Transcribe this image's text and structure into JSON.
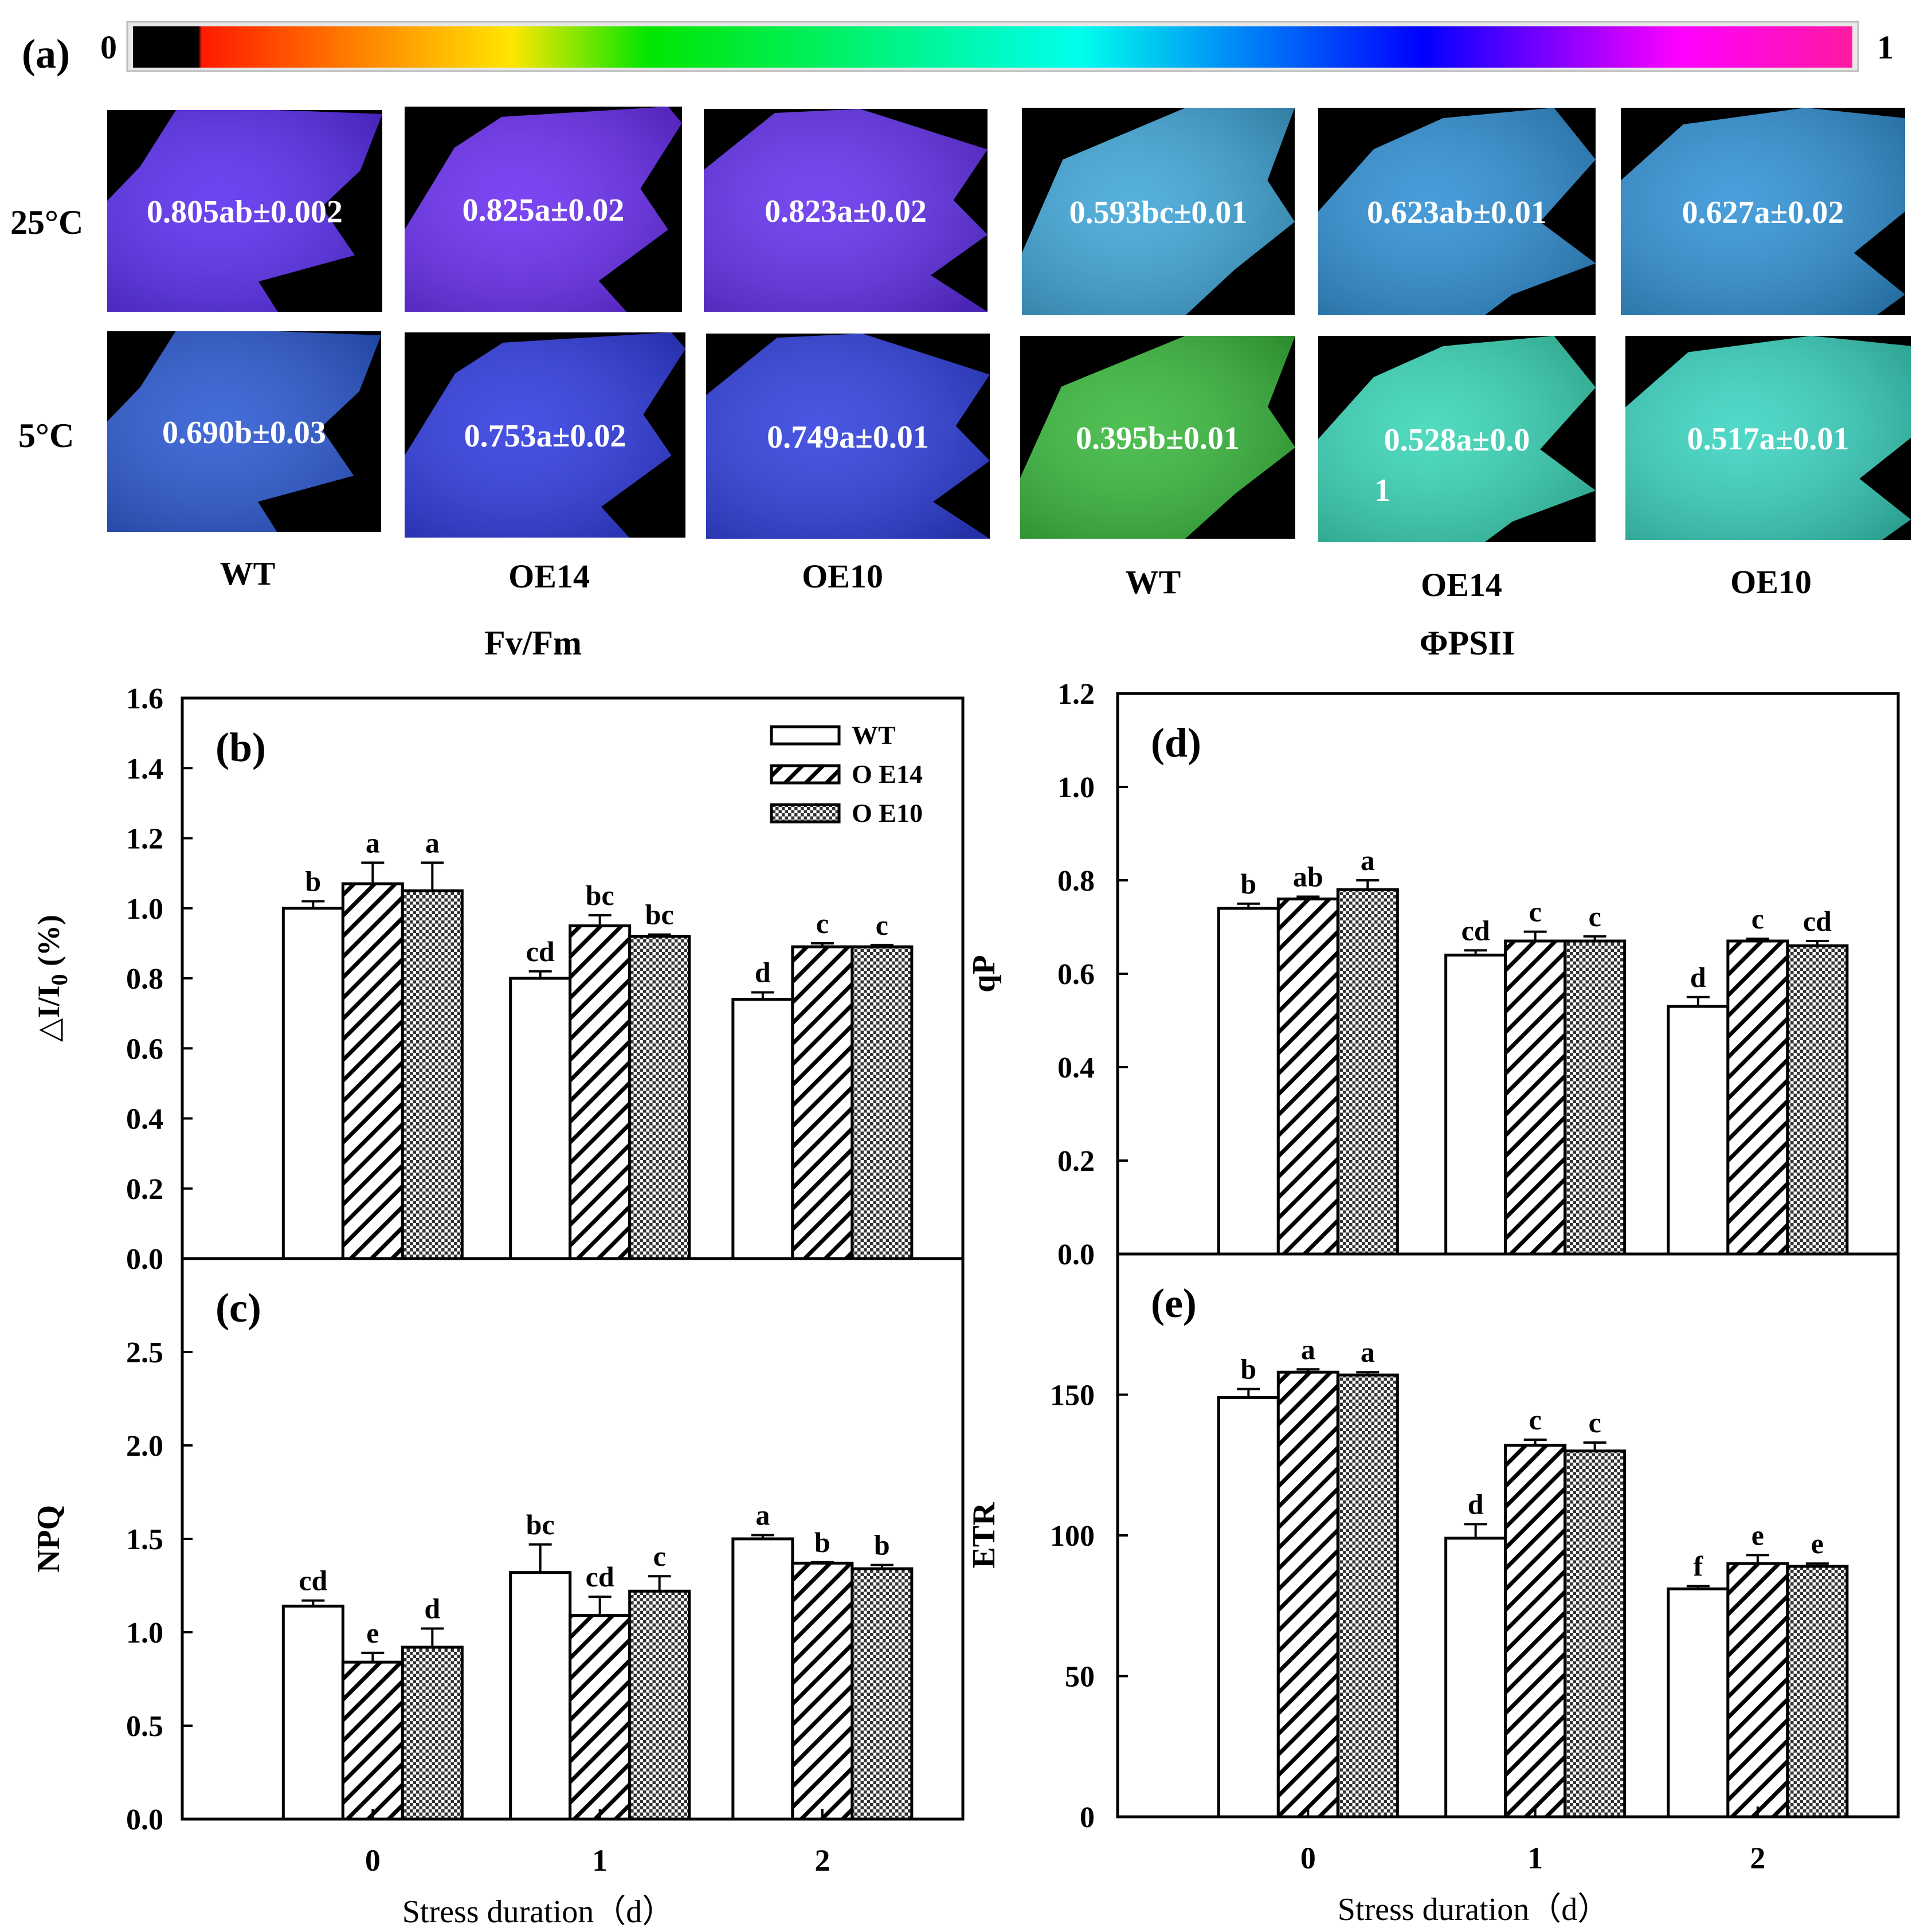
{
  "colorbar": {
    "panel_label": "(a)",
    "min_label": "0",
    "max_label": "1",
    "stops": [
      "#000000",
      "#000000",
      "#ff1a00",
      "#ffe600",
      "#00e600",
      "#00ffee",
      "#0000ff",
      "#ff00ff",
      "#ff1aa0"
    ]
  },
  "panel_a": {
    "row_labels": [
      "25°C",
      "5°C"
    ],
    "group_titles": [
      "Fv/Fm",
      "ΦPSII"
    ],
    "column_labels": [
      "WT",
      "OE14",
      "OE10",
      "WT",
      "OE14",
      "OE10"
    ],
    "fvfm_25": [
      {
        "text": "0.805ab±0.002",
        "color": "#5a2cf0"
      },
      {
        "text": "0.825a±0.02",
        "color": "#6a2df2"
      },
      {
        "text": "0.823a±0.02",
        "color": "#6330ee"
      }
    ],
    "fvfm_5": [
      {
        "text": "0.690b±0.03",
        "color": "#2a58d2"
      },
      {
        "text": "0.753a±0.02",
        "color": "#2f3ae0"
      },
      {
        "text": "0.749a±0.01",
        "color": "#2f3fde"
      }
    ],
    "phipsii_25": [
      {
        "text": "0.593bc±0.01",
        "color": "#3fa6d8"
      },
      {
        "text": "0.623ab±0.01",
        "color": "#2f8fd4"
      },
      {
        "text": "0.627a±0.02",
        "color": "#3192d6"
      }
    ],
    "phipsii_5": [
      {
        "text": "0.395b±0.01",
        "color": "#38b83c"
      },
      {
        "text": "0.528a±0.0",
        "text2": "1",
        "color": "#38d6b6"
      },
      {
        "text": "0.517a±0.01",
        "color": "#3ad4c0"
      }
    ]
  },
  "chart_data": [
    {
      "panel": "(b)",
      "type": "bar",
      "ylabel": "△I/I0 (%)",
      "ylabel_main": "△I/I",
      "ylabel_sub": "0",
      "ylabel_tail": " (%)",
      "xlabel": "",
      "ylim": [
        0,
        1.6
      ],
      "yticks": [
        "0.0",
        "0.2",
        "0.4",
        "0.6",
        "0.8",
        "1.0",
        "1.2",
        "1.4",
        "1.6"
      ],
      "categories": [
        "0",
        "1",
        "2"
      ],
      "series": [
        {
          "name": "WT",
          "values": [
            1.0,
            0.8,
            0.74
          ],
          "err": [
            0.02,
            0.02,
            0.02
          ],
          "letters": [
            "b",
            "cd",
            "d"
          ]
        },
        {
          "name": "O E14",
          "values": [
            1.07,
            0.95,
            0.89
          ],
          "err": [
            0.06,
            0.03,
            0.01
          ],
          "letters": [
            "a",
            "bc",
            "c"
          ]
        },
        {
          "name": "O E10",
          "values": [
            1.05,
            0.92,
            0.89
          ],
          "err": [
            0.08,
            0.005,
            0.005
          ],
          "letters": [
            "a",
            "bc",
            "c"
          ]
        }
      ],
      "legend": [
        "WT",
        "O E14",
        "O E10"
      ]
    },
    {
      "panel": "(c)",
      "type": "bar",
      "ylabel": "NPQ",
      "xlabel": "Stress duration（d）",
      "ylim": [
        0,
        3.0
      ],
      "yticks": [
        "0.0",
        "0.5",
        "1.0",
        "1.5",
        "2.0",
        "2.5"
      ],
      "categories": [
        "0",
        "1",
        "2"
      ],
      "series": [
        {
          "name": "WT",
          "values": [
            1.14,
            1.32,
            1.5
          ],
          "err": [
            0.03,
            0.15,
            0.02
          ],
          "letters": [
            "cd",
            "bc",
            "a"
          ]
        },
        {
          "name": "O E14",
          "values": [
            0.84,
            1.09,
            1.37
          ],
          "err": [
            0.05,
            0.1,
            0.005
          ],
          "letters": [
            "e",
            "cd",
            "b"
          ]
        },
        {
          "name": "O E10",
          "values": [
            0.92,
            1.22,
            1.34
          ],
          "err": [
            0.1,
            0.08,
            0.02
          ],
          "letters": [
            "d",
            "c",
            "b"
          ]
        }
      ]
    },
    {
      "panel": "(d)",
      "type": "bar",
      "ylabel": "qP",
      "xlabel": "",
      "ylim": [
        0,
        1.2
      ],
      "yticks": [
        "0.0",
        "0.2",
        "0.4",
        "0.6",
        "0.8",
        "1.0",
        "1.2"
      ],
      "categories": [
        "0",
        "1",
        "2"
      ],
      "series": [
        {
          "name": "WT",
          "values": [
            0.74,
            0.64,
            0.53
          ],
          "err": [
            0.01,
            0.01,
            0.02
          ],
          "letters": [
            "b",
            "cd",
            "d"
          ]
        },
        {
          "name": "O E14",
          "values": [
            0.76,
            0.67,
            0.67
          ],
          "err": [
            0.005,
            0.02,
            0.005
          ],
          "letters": [
            "ab",
            "c",
            "c"
          ]
        },
        {
          "name": "O E10",
          "values": [
            0.78,
            0.67,
            0.66
          ],
          "err": [
            0.02,
            0.01,
            0.01
          ],
          "letters": [
            "a",
            "c",
            "cd"
          ]
        }
      ]
    },
    {
      "panel": "(e)",
      "type": "bar",
      "ylabel": "ETR",
      "xlabel": "Stress duration（d）",
      "ylim": [
        0,
        200
      ],
      "yticks": [
        "0",
        "50",
        "100",
        "150"
      ],
      "categories": [
        "0",
        "1",
        "2"
      ],
      "series": [
        {
          "name": "WT",
          "values": [
            149,
            99,
            81
          ],
          "err": [
            3,
            5,
            1
          ],
          "letters": [
            "b",
            "d",
            "f"
          ]
        },
        {
          "name": "O E14",
          "values": [
            158,
            132,
            90
          ],
          "err": [
            1,
            2,
            3
          ],
          "letters": [
            "a",
            "c",
            "e"
          ]
        },
        {
          "name": "O E10",
          "values": [
            157,
            130,
            89
          ],
          "err": [
            1,
            3,
            1
          ],
          "letters": [
            "a",
            "c",
            "e"
          ]
        }
      ]
    }
  ]
}
